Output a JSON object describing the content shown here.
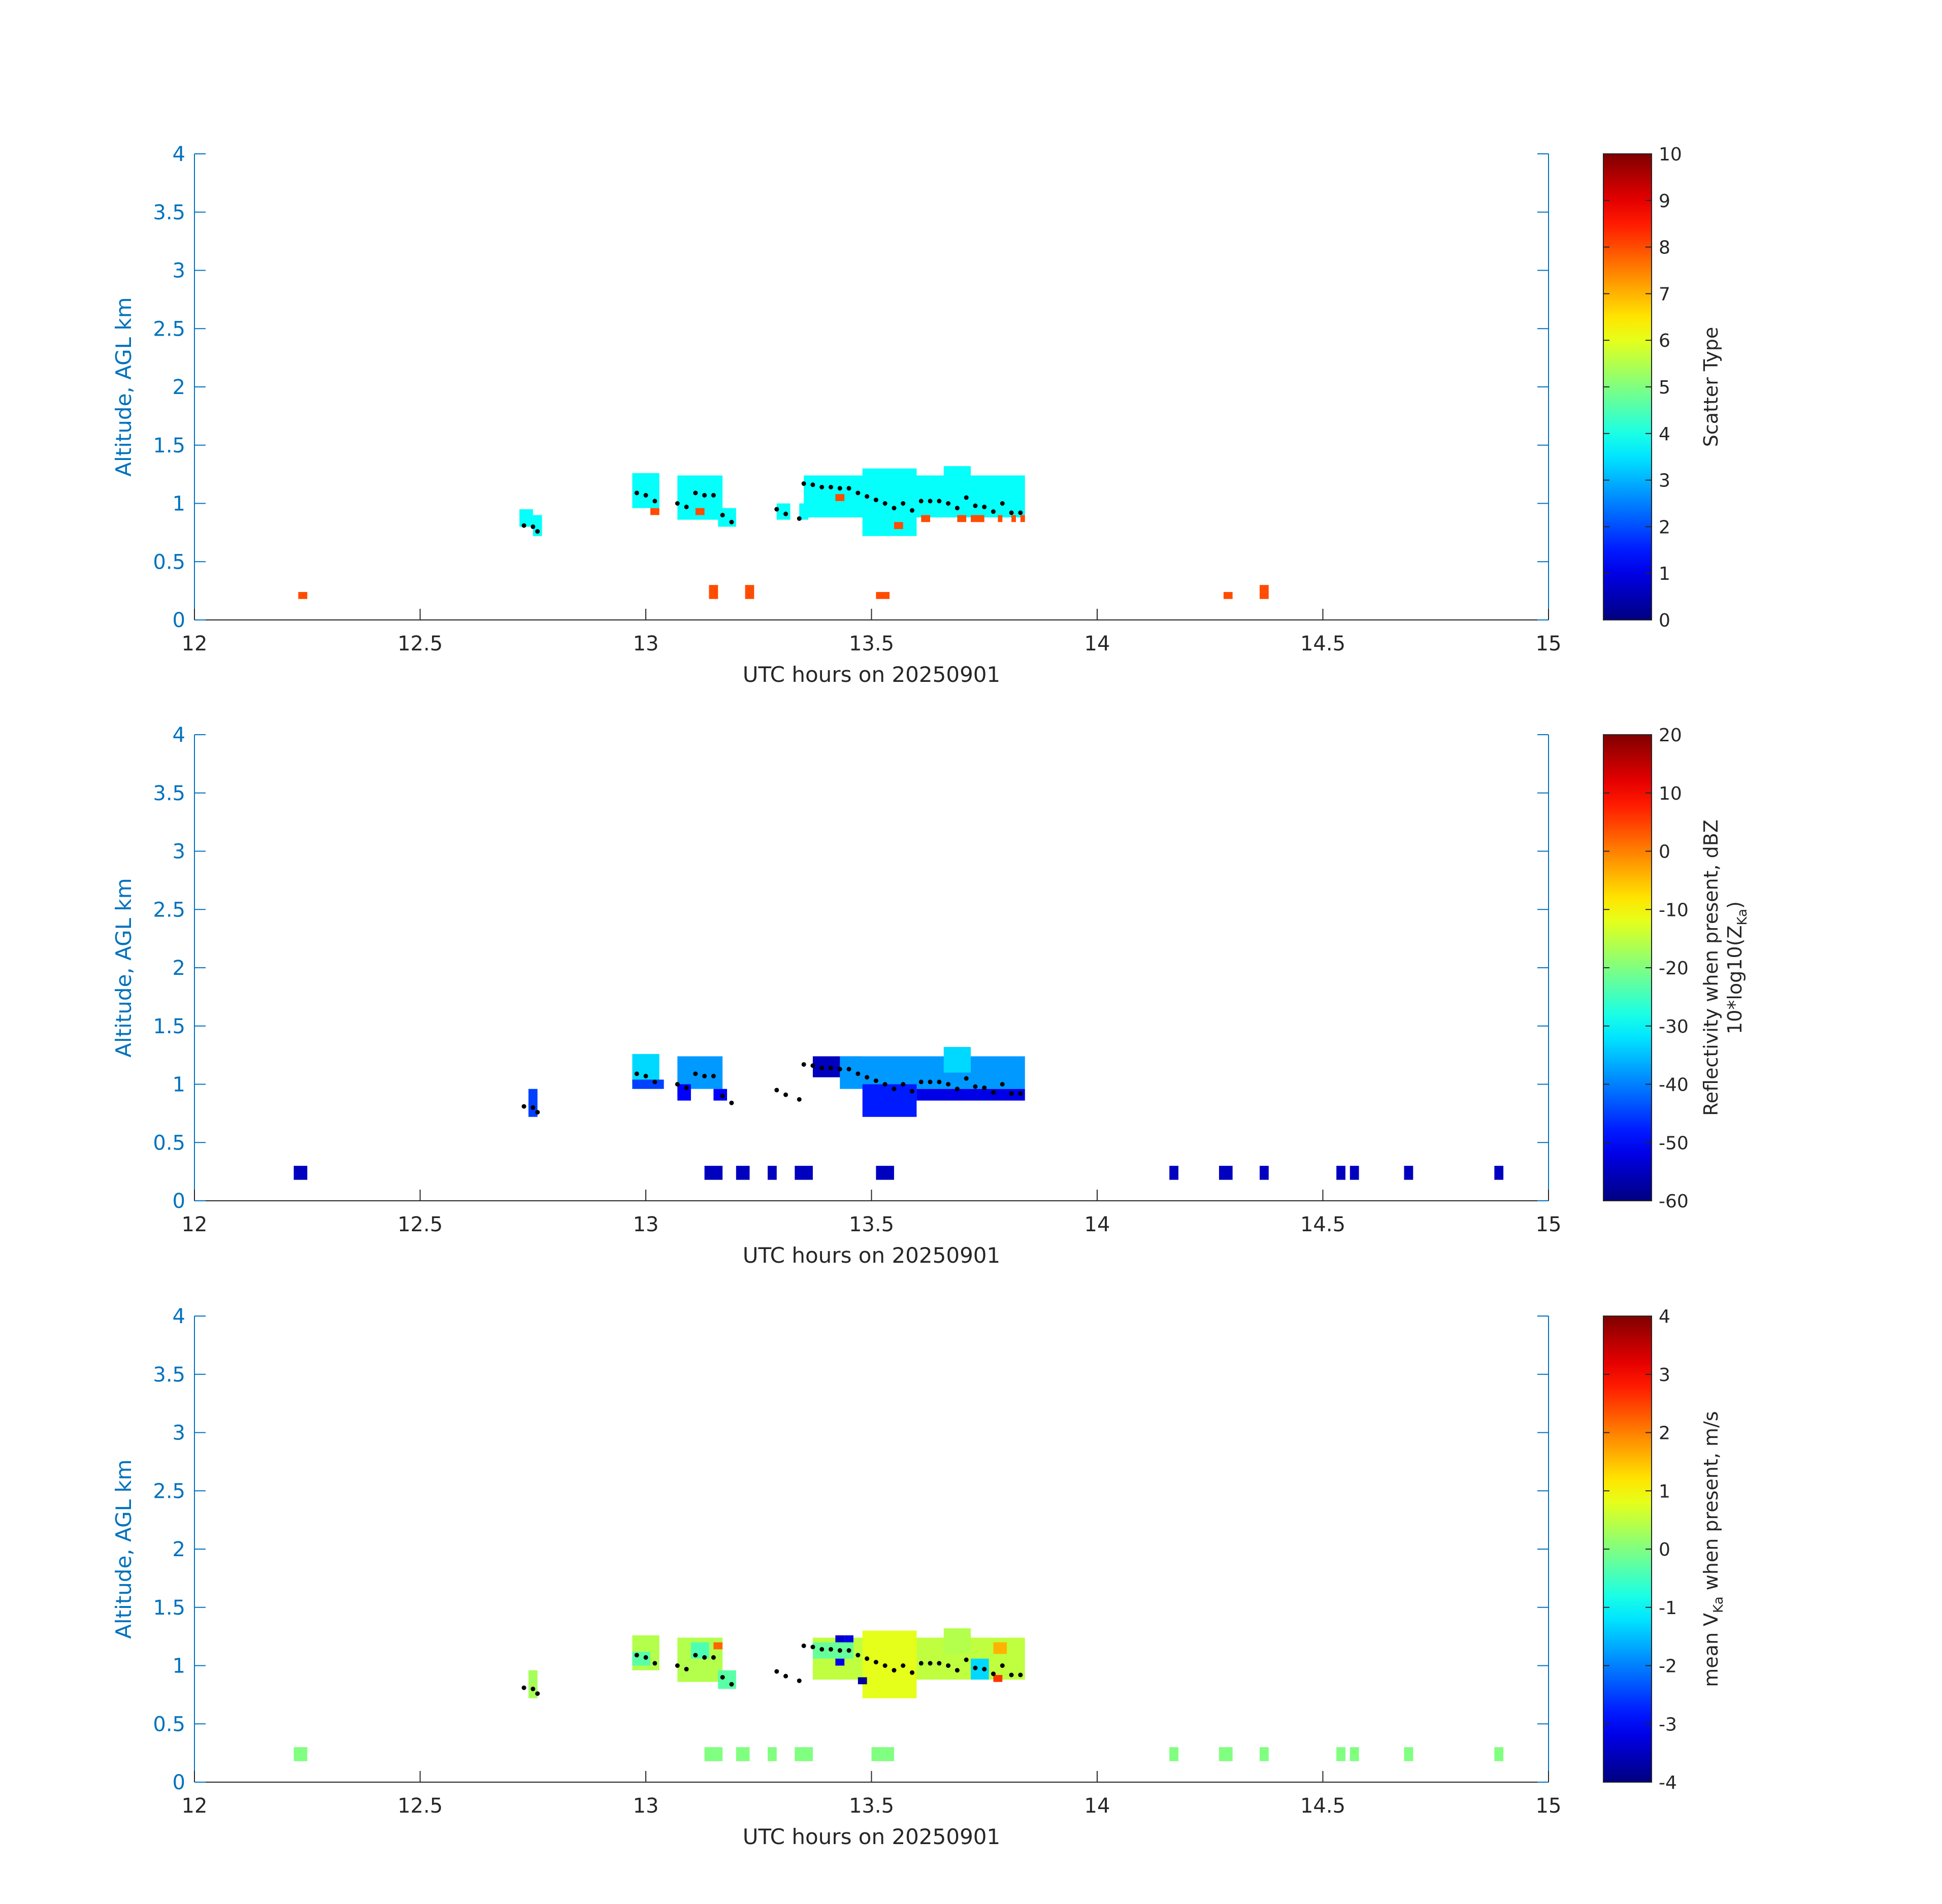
{
  "chart_data": [
    {
      "type": "heatmap",
      "xlabel": "UTC hours on 20250901",
      "ylabel": "Altitude, AGL km",
      "xlim": [
        12,
        15
      ],
      "ylim": [
        0,
        4
      ],
      "xticks": [
        "12",
        "12.5",
        "13",
        "13.5",
        "14",
        "14.5",
        "15"
      ],
      "yticks": [
        "0",
        "0.5",
        "1",
        "1.5",
        "2",
        "2.5",
        "3",
        "3.5",
        "4"
      ],
      "colorbar": {
        "label": "Scatter Type",
        "range": [
          0,
          10
        ],
        "ticks": [
          "0",
          "1",
          "2",
          "3",
          "4",
          "5",
          "6",
          "7",
          "8",
          "9",
          "10"
        ],
        "colormap": "jet"
      },
      "cells": [
        {
          "x0": 12.72,
          "x1": 12.75,
          "y0": 0.8,
          "y1": 0.95,
          "v": 3.8
        },
        {
          "x0": 12.75,
          "x1": 12.77,
          "y0": 0.72,
          "y1": 0.9,
          "v": 3.8
        },
        {
          "x0": 12.97,
          "x1": 13.03,
          "y0": 0.96,
          "y1": 1.26,
          "v": 3.8
        },
        {
          "x0": 13.07,
          "x1": 13.17,
          "y0": 0.86,
          "y1": 1.24,
          "v": 3.8
        },
        {
          "x0": 13.16,
          "x1": 13.2,
          "y0": 0.8,
          "y1": 0.96,
          "v": 3.8
        },
        {
          "x0": 13.29,
          "x1": 13.32,
          "y0": 0.86,
          "y1": 1.0,
          "v": 3.8
        },
        {
          "x0": 13.34,
          "x1": 13.36,
          "y0": 0.86,
          "y1": 1.0,
          "v": 3.8
        },
        {
          "x0": 13.35,
          "x1": 13.84,
          "y0": 0.88,
          "y1": 1.24,
          "v": 3.8
        },
        {
          "x0": 13.48,
          "x1": 13.6,
          "y0": 0.72,
          "y1": 1.3,
          "v": 3.8
        },
        {
          "x0": 13.66,
          "x1": 13.72,
          "y0": 1.1,
          "y1": 1.32,
          "v": 3.8
        },
        {
          "x0": 13.01,
          "x1": 13.03,
          "y0": 0.9,
          "y1": 0.96,
          "v": 8
        },
        {
          "x0": 13.11,
          "x1": 13.13,
          "y0": 0.9,
          "y1": 0.96,
          "v": 8
        },
        {
          "x0": 13.42,
          "x1": 13.44,
          "y0": 1.02,
          "y1": 1.08,
          "v": 8
        },
        {
          "x0": 13.55,
          "x1": 13.57,
          "y0": 0.78,
          "y1": 0.84,
          "v": 8
        },
        {
          "x0": 13.61,
          "x1": 13.63,
          "y0": 0.84,
          "y1": 0.9,
          "v": 8
        },
        {
          "x0": 13.69,
          "x1": 13.71,
          "y0": 0.84,
          "y1": 0.9,
          "v": 8
        },
        {
          "x0": 13.72,
          "x1": 13.75,
          "y0": 0.84,
          "y1": 0.9,
          "v": 8
        },
        {
          "x0": 13.78,
          "x1": 13.79,
          "y0": 0.84,
          "y1": 0.9,
          "v": 8
        },
        {
          "x0": 13.81,
          "x1": 13.82,
          "y0": 0.84,
          "y1": 0.9,
          "v": 8
        },
        {
          "x0": 13.83,
          "x1": 13.84,
          "y0": 0.84,
          "y1": 0.9,
          "v": 8
        },
        {
          "x0": 12.23,
          "x1": 12.25,
          "y0": 0.18,
          "y1": 0.24,
          "v": 8
        },
        {
          "x0": 13.14,
          "x1": 13.16,
          "y0": 0.18,
          "y1": 0.3,
          "v": 8
        },
        {
          "x0": 13.22,
          "x1": 13.24,
          "y0": 0.18,
          "y1": 0.3,
          "v": 8
        },
        {
          "x0": 13.51,
          "x1": 13.54,
          "y0": 0.18,
          "y1": 0.24,
          "v": 8
        },
        {
          "x0": 14.28,
          "x1": 14.3,
          "y0": 0.18,
          "y1": 0.24,
          "v": 8
        },
        {
          "x0": 14.36,
          "x1": 14.38,
          "y0": 0.18,
          "y1": 0.3,
          "v": 8
        }
      ]
    },
    {
      "type": "heatmap",
      "xlabel": "UTC hours on 20250901",
      "ylabel": "Altitude, AGL km",
      "xlim": [
        12,
        15
      ],
      "ylim": [
        0,
        4
      ],
      "xticks": [
        "12",
        "12.5",
        "13",
        "13.5",
        "14",
        "14.5",
        "15"
      ],
      "yticks": [
        "0",
        "0.5",
        "1",
        "1.5",
        "2",
        "2.5",
        "3",
        "3.5",
        "4"
      ],
      "colorbar": {
        "label": "Reflectivity when present, dBZ",
        "label2": "10*log10(Z",
        "label2_sub": "Ka",
        "label2_end": ")",
        "range": [
          -60,
          20
        ],
        "ticks": [
          "-60",
          "-50",
          "-40",
          "-30",
          "-20",
          "-10",
          "0",
          "10",
          "20"
        ],
        "colormap": "jet"
      },
      "cells": [
        {
          "x0": 12.74,
          "x1": 12.76,
          "y0": 0.72,
          "y1": 0.96,
          "v": -45
        },
        {
          "x0": 12.97,
          "x1": 13.03,
          "y0": 1.0,
          "y1": 1.26,
          "v": -33
        },
        {
          "x0": 12.97,
          "x1": 13.04,
          "y0": 0.96,
          "y1": 1.04,
          "v": -45
        },
        {
          "x0": 13.07,
          "x1": 13.17,
          "y0": 0.96,
          "y1": 1.24,
          "v": -38
        },
        {
          "x0": 13.07,
          "x1": 13.1,
          "y0": 0.86,
          "y1": 1.0,
          "v": -50
        },
        {
          "x0": 13.15,
          "x1": 13.18,
          "y0": 0.86,
          "y1": 0.96,
          "v": -50
        },
        {
          "x0": 13.37,
          "x1": 13.48,
          "y0": 1.06,
          "y1": 1.24,
          "v": -55
        },
        {
          "x0": 13.43,
          "x1": 13.84,
          "y0": 0.96,
          "y1": 1.24,
          "v": -38
        },
        {
          "x0": 13.48,
          "x1": 13.6,
          "y0": 0.72,
          "y1": 1.0,
          "v": -48
        },
        {
          "x0": 13.66,
          "x1": 13.72,
          "y0": 1.1,
          "y1": 1.32,
          "v": -33
        },
        {
          "x0": 13.6,
          "x1": 13.84,
          "y0": 0.86,
          "y1": 0.96,
          "v": -52
        },
        {
          "x0": 12.22,
          "x1": 12.25,
          "y0": 0.18,
          "y1": 0.3,
          "v": -55
        },
        {
          "x0": 13.13,
          "x1": 13.17,
          "y0": 0.18,
          "y1": 0.3,
          "v": -55
        },
        {
          "x0": 13.2,
          "x1": 13.23,
          "y0": 0.18,
          "y1": 0.3,
          "v": -55
        },
        {
          "x0": 13.27,
          "x1": 13.29,
          "y0": 0.18,
          "y1": 0.3,
          "v": -55
        },
        {
          "x0": 13.33,
          "x1": 13.37,
          "y0": 0.18,
          "y1": 0.3,
          "v": -55
        },
        {
          "x0": 13.51,
          "x1": 13.55,
          "y0": 0.18,
          "y1": 0.3,
          "v": -55
        },
        {
          "x0": 14.16,
          "x1": 14.18,
          "y0": 0.18,
          "y1": 0.3,
          "v": -55
        },
        {
          "x0": 14.27,
          "x1": 14.3,
          "y0": 0.18,
          "y1": 0.3,
          "v": -55
        },
        {
          "x0": 14.36,
          "x1": 14.38,
          "y0": 0.18,
          "y1": 0.3,
          "v": -55
        },
        {
          "x0": 14.53,
          "x1": 14.55,
          "y0": 0.18,
          "y1": 0.3,
          "v": -55
        },
        {
          "x0": 14.56,
          "x1": 14.58,
          "y0": 0.18,
          "y1": 0.3,
          "v": -55
        },
        {
          "x0": 14.68,
          "x1": 14.7,
          "y0": 0.18,
          "y1": 0.3,
          "v": -55
        },
        {
          "x0": 14.88,
          "x1": 14.9,
          "y0": 0.18,
          "y1": 0.3,
          "v": -55
        }
      ]
    },
    {
      "type": "heatmap",
      "xlabel": "UTC hours on 20250901",
      "ylabel": "Altitude, AGL km",
      "xlim": [
        12,
        15
      ],
      "ylim": [
        0,
        4
      ],
      "xticks": [
        "12",
        "12.5",
        "13",
        "13.5",
        "14",
        "14.5",
        "15"
      ],
      "yticks": [
        "0",
        "0.5",
        "1",
        "1.5",
        "2",
        "2.5",
        "3",
        "3.5",
        "4"
      ],
      "colorbar": {
        "label_pre": "mean V",
        "label_sub": "Ka",
        "label_post": " when present, m/s",
        "range": [
          -4,
          4
        ],
        "ticks": [
          "-4",
          "-3",
          "-2",
          "-1",
          "0",
          "1",
          "2",
          "3",
          "4"
        ],
        "colormap": "jet"
      },
      "cells": [
        {
          "x0": 12.74,
          "x1": 12.76,
          "y0": 0.72,
          "y1": 0.96,
          "v": 0.3
        },
        {
          "x0": 12.97,
          "x1": 13.03,
          "y0": 0.96,
          "y1": 1.26,
          "v": 0.4
        },
        {
          "x0": 12.97,
          "x1": 13.01,
          "y0": 1.0,
          "y1": 1.12,
          "v": -0.3
        },
        {
          "x0": 13.07,
          "x1": 13.17,
          "y0": 0.86,
          "y1": 1.24,
          "v": 0.4
        },
        {
          "x0": 13.1,
          "x1": 13.14,
          "y0": 1.06,
          "y1": 1.2,
          "v": -0.4
        },
        {
          "x0": 13.15,
          "x1": 13.17,
          "y0": 1.14,
          "y1": 1.2,
          "v": 2.2
        },
        {
          "x0": 13.16,
          "x1": 13.2,
          "y0": 0.8,
          "y1": 0.96,
          "v": -0.3
        },
        {
          "x0": 13.37,
          "x1": 13.84,
          "y0": 0.88,
          "y1": 1.24,
          "v": 0.5
        },
        {
          "x0": 13.37,
          "x1": 13.46,
          "y0": 1.06,
          "y1": 1.2,
          "v": -0.2
        },
        {
          "x0": 13.48,
          "x1": 13.6,
          "y0": 0.72,
          "y1": 1.3,
          "v": 0.8
        },
        {
          "x0": 13.66,
          "x1": 13.72,
          "y0": 1.1,
          "y1": 1.32,
          "v": 0.4
        },
        {
          "x0": 13.72,
          "x1": 13.76,
          "y0": 0.88,
          "y1": 1.06,
          "v": -1.3
        },
        {
          "x0": 13.77,
          "x1": 13.8,
          "y0": 1.1,
          "y1": 1.2,
          "v": 1.6
        },
        {
          "x0": 13.42,
          "x1": 13.44,
          "y0": 1.2,
          "y1": 1.26,
          "v": -3.4
        },
        {
          "x0": 13.44,
          "x1": 13.46,
          "y0": 1.2,
          "y1": 1.26,
          "v": -3.2
        },
        {
          "x0": 13.42,
          "x1": 13.44,
          "y0": 1.0,
          "y1": 1.06,
          "v": -3.2
        },
        {
          "x0": 13.47,
          "x1": 13.49,
          "y0": 0.84,
          "y1": 0.9,
          "v": -3.8
        },
        {
          "x0": 13.77,
          "x1": 13.79,
          "y0": 0.86,
          "y1": 0.92,
          "v": 2.6
        },
        {
          "x0": 12.22,
          "x1": 12.25,
          "y0": 0.18,
          "y1": 0.3,
          "v": 0
        },
        {
          "x0": 13.13,
          "x1": 13.17,
          "y0": 0.18,
          "y1": 0.3,
          "v": 0
        },
        {
          "x0": 13.2,
          "x1": 13.23,
          "y0": 0.18,
          "y1": 0.3,
          "v": 0
        },
        {
          "x0": 13.27,
          "x1": 13.29,
          "y0": 0.18,
          "y1": 0.3,
          "v": 0
        },
        {
          "x0": 13.33,
          "x1": 13.37,
          "y0": 0.18,
          "y1": 0.3,
          "v": 0
        },
        {
          "x0": 13.5,
          "x1": 13.55,
          "y0": 0.18,
          "y1": 0.3,
          "v": 0
        },
        {
          "x0": 14.16,
          "x1": 14.18,
          "y0": 0.18,
          "y1": 0.3,
          "v": 0
        },
        {
          "x0": 14.27,
          "x1": 14.3,
          "y0": 0.18,
          "y1": 0.3,
          "v": 0
        },
        {
          "x0": 14.36,
          "x1": 14.38,
          "y0": 0.18,
          "y1": 0.3,
          "v": 0
        },
        {
          "x0": 14.53,
          "x1": 14.55,
          "y0": 0.18,
          "y1": 0.3,
          "v": 0
        },
        {
          "x0": 14.56,
          "x1": 14.58,
          "y0": 0.18,
          "y1": 0.3,
          "v": 0
        },
        {
          "x0": 14.68,
          "x1": 14.7,
          "y0": 0.18,
          "y1": 0.3,
          "v": 0
        },
        {
          "x0": 14.88,
          "x1": 14.9,
          "y0": 0.18,
          "y1": 0.3,
          "v": 0
        }
      ]
    }
  ],
  "cloud_base_points": {
    "color": "#000000",
    "x": [
      12.73,
      12.75,
      12.76,
      12.98,
      13.0,
      13.02,
      13.07,
      13.09,
      13.11,
      13.13,
      13.15,
      13.17,
      13.19,
      13.29,
      13.31,
      13.34,
      13.35,
      13.37,
      13.39,
      13.41,
      13.43,
      13.45,
      13.47,
      13.49,
      13.51,
      13.53,
      13.55,
      13.57,
      13.59,
      13.61,
      13.63,
      13.65,
      13.67,
      13.69,
      13.71,
      13.73,
      13.75,
      13.77,
      13.79,
      13.81,
      13.83
    ],
    "y": [
      0.81,
      0.8,
      0.76,
      1.09,
      1.07,
      1.02,
      1.0,
      0.97,
      1.09,
      1.07,
      1.07,
      0.9,
      0.84,
      0.95,
      0.91,
      0.87,
      1.17,
      1.16,
      1.14,
      1.14,
      1.13,
      1.13,
      1.09,
      1.06,
      1.03,
      1.0,
      0.96,
      1.0,
      0.94,
      1.02,
      1.02,
      1.02,
      1.0,
      0.96,
      1.05,
      0.98,
      0.97,
      0.93,
      1.0,
      0.92,
      0.92
    ]
  }
}
